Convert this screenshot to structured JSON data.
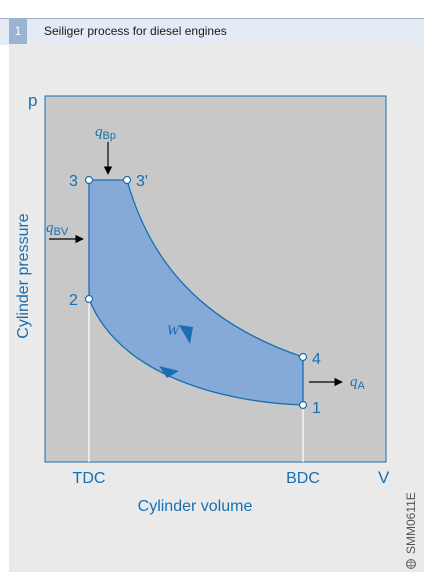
{
  "header": {
    "figure_number": "1",
    "title": "Seiliger process for diesel engines"
  },
  "diagram": {
    "axes": {
      "y_symbol": "p",
      "x_symbol": "V",
      "y_label": "Cylinder pressure",
      "x_label": "Cylinder volume",
      "x_tick_left": "TDC",
      "x_tick_right": "BDC"
    },
    "points": {
      "p1": "1",
      "p2": "2",
      "p3": "3",
      "p3prime": "3'",
      "p4": "4"
    },
    "labels": {
      "work": "W",
      "q_bp_main": "q",
      "q_bp_sub": "Bp",
      "q_bv_main": "q",
      "q_bv_sub": "BV",
      "q_a_main": "q",
      "q_a_sub": "A"
    },
    "code": "SMM0611E",
    "colors": {
      "plot_bg": "#c8c8c8",
      "cycle_fill": "#86aad8",
      "line_blue": "#1a6fb0",
      "panel_bg": "#eaeaea",
      "header_bg": "#e4ebf4"
    }
  }
}
